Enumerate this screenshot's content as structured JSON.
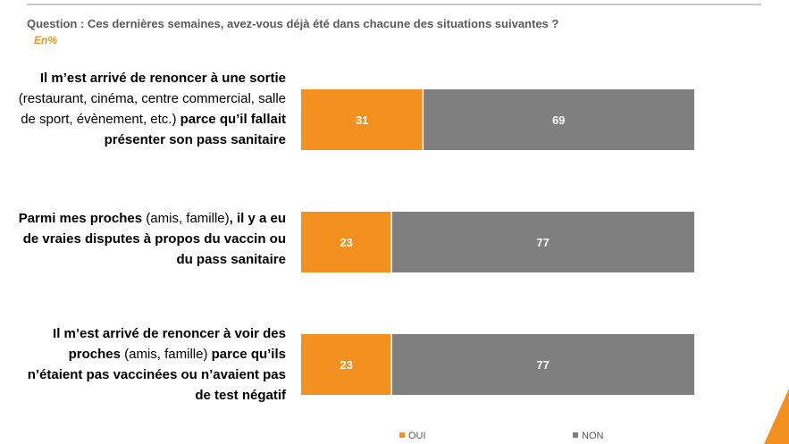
{
  "header": {
    "question": "Question : Ces dernières semaines, avez-vous déjà été dans chacune des situations suivantes ?",
    "unit": "En%"
  },
  "colors": {
    "oui": "#f29120",
    "non": "#7f7f7f"
  },
  "chart_data": {
    "type": "bar",
    "orientation": "horizontal",
    "stacked": true,
    "categories": [
      [
        {
          "bold": true,
          "text": "Il m’est arrivé de renoncer à une sortie "
        },
        {
          "bold": false,
          "text": "(restaurant, cinéma, centre commercial, salle de sport, évènement, etc.)"
        },
        {
          "bold": true,
          "text": " parce qu’il fallait présenter son pass sanitaire"
        }
      ],
      [
        {
          "bold": true,
          "text": "Parmi mes proches "
        },
        {
          "bold": false,
          "text": "(amis, famille)"
        },
        {
          "bold": true,
          "text": ", il y a eu de vraies disputes à propos du vaccin ou du pass sanitaire"
        }
      ],
      [
        {
          "bold": true,
          "text": "Il m’est arrivé de renoncer à voir des proches "
        },
        {
          "bold": false,
          "text": "(amis, famille)"
        },
        {
          "bold": true,
          "text": " parce qu’ils n’étaient pas vaccinées ou n’avaient pas de test négatif"
        }
      ]
    ],
    "series": [
      {
        "name": "OUI",
        "values": [
          31,
          23,
          23
        ]
      },
      {
        "name": "NON",
        "values": [
          69,
          77,
          77
        ]
      }
    ],
    "xlim": [
      0,
      100
    ],
    "legend_position": "bottom"
  }
}
